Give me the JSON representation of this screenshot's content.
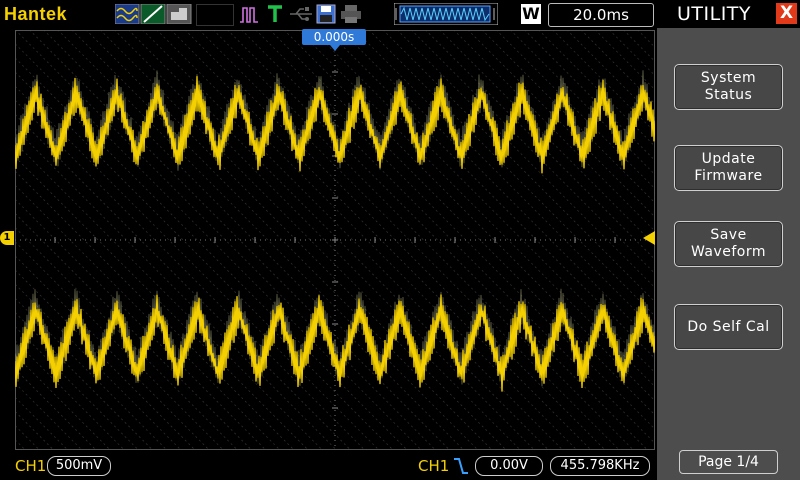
{
  "header": {
    "brand": "Hantek",
    "timebase": "20.0ms",
    "acq_mode": "W",
    "trigger_position": "0.000s",
    "icons": [
      "acquire-wave-icon",
      "slope-icon",
      "probe-icon",
      "trigger-pulse-icon",
      "trigger-t-icon",
      "usb-icon",
      "save-disk-icon",
      "print-icon",
      "memory-waveform-icon"
    ]
  },
  "waveform": {
    "channel_marker": "1",
    "color": "#f4d000"
  },
  "footer": {
    "channel": "CH1",
    "volts_div": "500mV",
    "trigger_channel": "CH1",
    "trigger_level": "0.00V",
    "frequency": "455.798KHz"
  },
  "menu": {
    "title": "UTILITY",
    "close": "X",
    "buttons": [
      {
        "line1": "System",
        "line2": "Status"
      },
      {
        "line1": "Update",
        "line2": "Firmware"
      },
      {
        "line1": "Save",
        "line2": "Waveform"
      },
      {
        "line1": "Do Self Cal",
        "line2": ""
      }
    ],
    "page": "Page 1/4"
  }
}
